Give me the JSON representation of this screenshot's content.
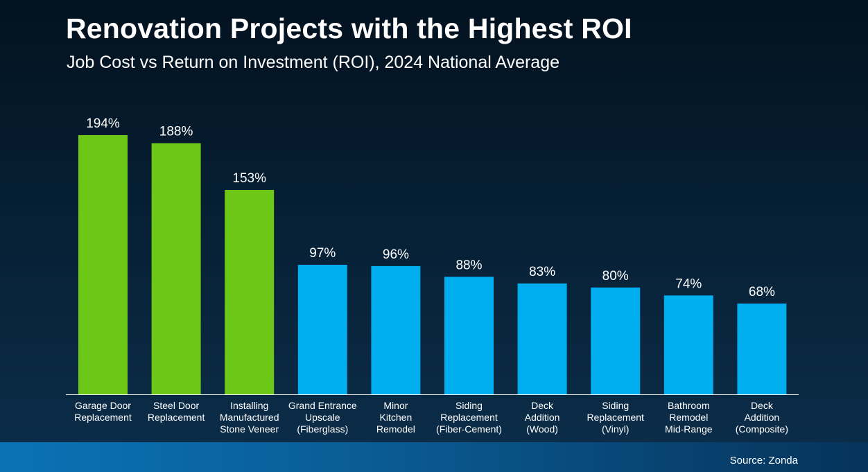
{
  "title": "Renovation Projects with the Highest ROI",
  "subtitle": "Job Cost vs Return on Investment (ROI), 2024 National Average",
  "source": "Source: Zonda",
  "colors": {
    "highlight": "#6cc716",
    "default": "#00adee",
    "axis": "#ffffff"
  },
  "chart_data": {
    "type": "bar",
    "categories": [
      [
        "Garage Door",
        "Replacement"
      ],
      [
        "Steel Door",
        "Replacement"
      ],
      [
        "Installing",
        "Manufactured",
        "Stone Veneer"
      ],
      [
        "Grand Entrance",
        "Upscale",
        "(Fiberglass)"
      ],
      [
        "Minor",
        "Kitchen",
        "Remodel"
      ],
      [
        "Siding",
        "Replacement",
        "(Fiber-Cement)"
      ],
      [
        "Deck",
        "Addition",
        "(Wood)"
      ],
      [
        "Siding",
        "Replacement",
        "(Vinyl)"
      ],
      [
        "Bathroom",
        "Remodel",
        "Mid-Range"
      ],
      [
        "Deck",
        "Addition",
        "(Composite)"
      ]
    ],
    "values": [
      194,
      188,
      153,
      97,
      96,
      88,
      83,
      80,
      74,
      68
    ],
    "data_labels": [
      "194%",
      "188%",
      "153%",
      "97%",
      "96%",
      "88%",
      "83%",
      "80%",
      "74%",
      "68%"
    ],
    "highlighted": [
      true,
      true,
      true,
      false,
      false,
      false,
      false,
      false,
      false,
      false
    ],
    "ylim": [
      0,
      194
    ],
    "grid": false,
    "legend": "none"
  }
}
